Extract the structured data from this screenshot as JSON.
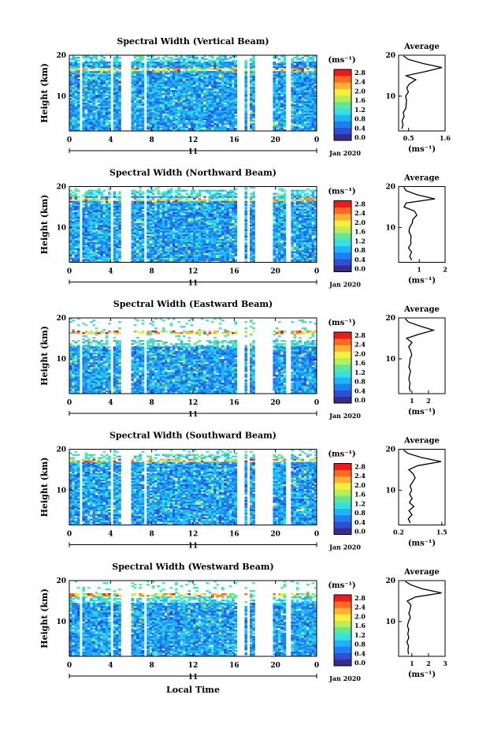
{
  "figure": {
    "time_axis_label": "Local Time",
    "date_label": "Jan 2020",
    "day_label": "11",
    "height_axis_label": "Height (km)",
    "unit_label": "(ms⁻¹)",
    "average_title": "Average"
  },
  "colorbar": {
    "tick_labels": [
      "2.8",
      "2.4",
      "2.0",
      "1.6",
      "1.2",
      "0.8",
      "0.4",
      "0.0"
    ],
    "colors": [
      "#3b2a8a",
      "#2c4fd6",
      "#1f7ff0",
      "#1fb4ff",
      "#35e0e0",
      "#5fe69a",
      "#b6f058",
      "#f6f03a",
      "#ffb030",
      "#ff6a1e",
      "#f01818"
    ]
  },
  "chart_data": [
    {
      "type": "heatmap",
      "title": "Spectral Width (Vertical Beam)",
      "xlabel": "Local Time",
      "ylabel": "Height (km)",
      "xlim": [
        0,
        24
      ],
      "ylim": [
        1.5,
        20
      ],
      "x_ticks": [
        "0",
        "4",
        "8",
        "12",
        "16",
        "20",
        "0"
      ],
      "y_ticks": [
        "10",
        "20"
      ],
      "colorbar_range": [
        0.0,
        2.8
      ],
      "data_gaps_hours": [
        [
          1.0,
          1.3
        ],
        [
          4.1,
          4.2
        ],
        [
          5.1,
          5.9
        ],
        [
          7.0,
          7.1
        ],
        [
          7.3,
          7.4
        ],
        [
          16.2,
          16.9
        ],
        [
          17.3,
          17.5
        ],
        [
          18.1,
          19.8
        ],
        [
          21.1,
          21.5
        ]
      ],
      "profile": {
        "title": "Average",
        "xlabel": "(ms⁻¹)",
        "xlim": [
          0.2,
          1.6
        ],
        "x_ticks": [
          "0.5",
          "1.6"
        ],
        "y_ticks": [
          "10",
          "20"
        ],
        "height_km": [
          2,
          3,
          4,
          5,
          6,
          7,
          8,
          9,
          10,
          11,
          12,
          13,
          14,
          15,
          16,
          17,
          18,
          19,
          19.8
        ],
        "width": [
          0.3,
          0.35,
          0.32,
          0.38,
          0.35,
          0.4,
          0.42,
          0.45,
          0.4,
          0.5,
          0.45,
          0.55,
          0.7,
          0.45,
          1.0,
          1.5,
          0.9,
          0.5,
          0.35
        ]
      }
    },
    {
      "type": "heatmap",
      "title": "Spectral Width (Northward Beam)",
      "xlabel": "Local Time",
      "ylabel": "Height (km)",
      "xlim": [
        0,
        24
      ],
      "ylim": [
        1.5,
        20
      ],
      "x_ticks": [
        "0",
        "4",
        "8",
        "12",
        "16",
        "20",
        "0"
      ],
      "y_ticks": [
        "10",
        "20"
      ],
      "colorbar_range": [
        0.0,
        2.8
      ],
      "data_gaps_hours": [
        [
          1.0,
          1.3
        ],
        [
          4.1,
          4.2
        ],
        [
          5.1,
          5.9
        ],
        [
          7.0,
          7.1
        ],
        [
          7.3,
          7.4
        ],
        [
          16.2,
          16.9
        ],
        [
          17.3,
          17.5
        ],
        [
          18.1,
          19.8
        ],
        [
          21.1,
          21.5
        ]
      ],
      "profile": {
        "title": "Average",
        "xlabel": "(ms⁻¹)",
        "xlim": [
          0.2,
          2.0
        ],
        "x_ticks": [
          "1",
          "2"
        ],
        "y_ticks": [
          "10",
          "20"
        ],
        "height_km": [
          2,
          3,
          4,
          5,
          6,
          7,
          8,
          9,
          10,
          11,
          12,
          13,
          14,
          15,
          16,
          17,
          18,
          19,
          19.8
        ],
        "width": [
          0.7,
          0.65,
          0.7,
          0.6,
          0.7,
          0.65,
          0.7,
          0.6,
          0.65,
          0.7,
          0.75,
          0.9,
          0.8,
          0.4,
          0.5,
          1.6,
          0.9,
          0.5,
          0.4
        ]
      }
    },
    {
      "type": "heatmap",
      "title": "Spectral Width (Eastward Beam)",
      "xlabel": "Local Time",
      "ylabel": "Height (km)",
      "xlim": [
        0,
        24
      ],
      "ylim": [
        1.5,
        20
      ],
      "x_ticks": [
        "0",
        "4",
        "8",
        "12",
        "16",
        "20",
        "0"
      ],
      "y_ticks": [
        "10",
        "20"
      ],
      "colorbar_range": [
        0.0,
        2.8
      ],
      "data_gaps_hours": [
        [
          1.0,
          1.3
        ],
        [
          4.1,
          4.2
        ],
        [
          5.1,
          5.9
        ],
        [
          7.0,
          7.1
        ],
        [
          7.3,
          7.4
        ],
        [
          16.2,
          16.9
        ],
        [
          17.3,
          17.5
        ],
        [
          18.1,
          19.8
        ],
        [
          21.1,
          21.5
        ]
      ],
      "profile": {
        "title": "Average",
        "xlabel": "(ms⁻¹)",
        "xlim": [
          0.2,
          3.0
        ],
        "x_ticks": [
          "1",
          "2"
        ],
        "y_ticks": [
          "10",
          "20"
        ],
        "height_km": [
          2,
          3,
          4,
          5,
          6,
          7,
          8,
          9,
          10,
          11,
          12,
          13,
          14,
          15,
          16,
          17,
          18,
          19,
          19.8
        ],
        "width": [
          0.9,
          0.85,
          0.9,
          0.8,
          0.85,
          0.9,
          0.8,
          0.85,
          0.9,
          1.0,
          0.9,
          0.8,
          1.0,
          0.7,
          1.4,
          2.3,
          1.5,
          0.8,
          0.6
        ]
      }
    },
    {
      "type": "heatmap",
      "title": "Spectral Width (Southward Beam)",
      "xlabel": "Local Time",
      "ylabel": "Height (km)",
      "xlim": [
        0,
        24
      ],
      "ylim": [
        1.5,
        20
      ],
      "x_ticks": [
        "0",
        "4",
        "8",
        "12",
        "16",
        "20",
        "0"
      ],
      "y_ticks": [
        "10",
        "20"
      ],
      "colorbar_range": [
        0.0,
        2.8
      ],
      "data_gaps_hours": [
        [
          1.0,
          1.3
        ],
        [
          4.1,
          4.2
        ],
        [
          5.1,
          5.9
        ],
        [
          7.0,
          7.1
        ],
        [
          7.3,
          7.4
        ],
        [
          16.2,
          16.9
        ],
        [
          17.3,
          17.5
        ],
        [
          18.1,
          19.8
        ],
        [
          21.1,
          21.5
        ]
      ],
      "profile": {
        "title": "Average",
        "xlabel": "(ms⁻¹)",
        "xlim": [
          0.2,
          1.6
        ],
        "x_ticks": [
          "0.2",
          "1.5"
        ],
        "y_ticks": [
          "10",
          "20"
        ],
        "height_km": [
          2,
          3,
          4,
          5,
          6,
          7,
          8,
          9,
          10,
          11,
          12,
          13,
          14,
          15,
          16,
          17,
          18,
          19,
          19.8
        ],
        "width": [
          0.55,
          0.5,
          0.6,
          0.5,
          0.65,
          0.55,
          0.6,
          0.55,
          0.6,
          0.55,
          0.6,
          0.7,
          0.65,
          0.5,
          0.8,
          1.5,
          0.9,
          0.5,
          0.35
        ]
      }
    },
    {
      "type": "heatmap",
      "title": "Spectral Width (Westward Beam)",
      "xlabel": "Local Time",
      "ylabel": "Height (km)",
      "xlim": [
        0,
        24
      ],
      "ylim": [
        1.5,
        20
      ],
      "x_ticks": [
        "0",
        "4",
        "8",
        "12",
        "16",
        "20",
        "0"
      ],
      "y_ticks": [
        "10",
        "20"
      ],
      "colorbar_range": [
        0.0,
        2.8
      ],
      "data_gaps_hours": [
        [
          1.0,
          1.3
        ],
        [
          4.1,
          4.2
        ],
        [
          5.1,
          5.9
        ],
        [
          7.0,
          7.1
        ],
        [
          7.3,
          7.4
        ],
        [
          16.2,
          16.9
        ],
        [
          17.3,
          17.5
        ],
        [
          18.1,
          19.8
        ],
        [
          21.1,
          21.5
        ]
      ],
      "profile": {
        "title": "Average",
        "xlabel": "(ms⁻¹)",
        "xlim": [
          0.2,
          3.0
        ],
        "x_ticks": [
          "1",
          "2",
          "3"
        ],
        "y_ticks": [
          "10",
          "20"
        ],
        "height_km": [
          2,
          3,
          4,
          5,
          6,
          7,
          8,
          9,
          10,
          11,
          12,
          13,
          14,
          15,
          16,
          17,
          18,
          19,
          19.8
        ],
        "width": [
          0.8,
          0.75,
          0.8,
          0.7,
          0.8,
          0.75,
          0.8,
          0.75,
          0.8,
          0.9,
          0.8,
          0.9,
          0.95,
          0.7,
          1.2,
          2.8,
          1.6,
          0.9,
          0.6
        ]
      }
    }
  ]
}
